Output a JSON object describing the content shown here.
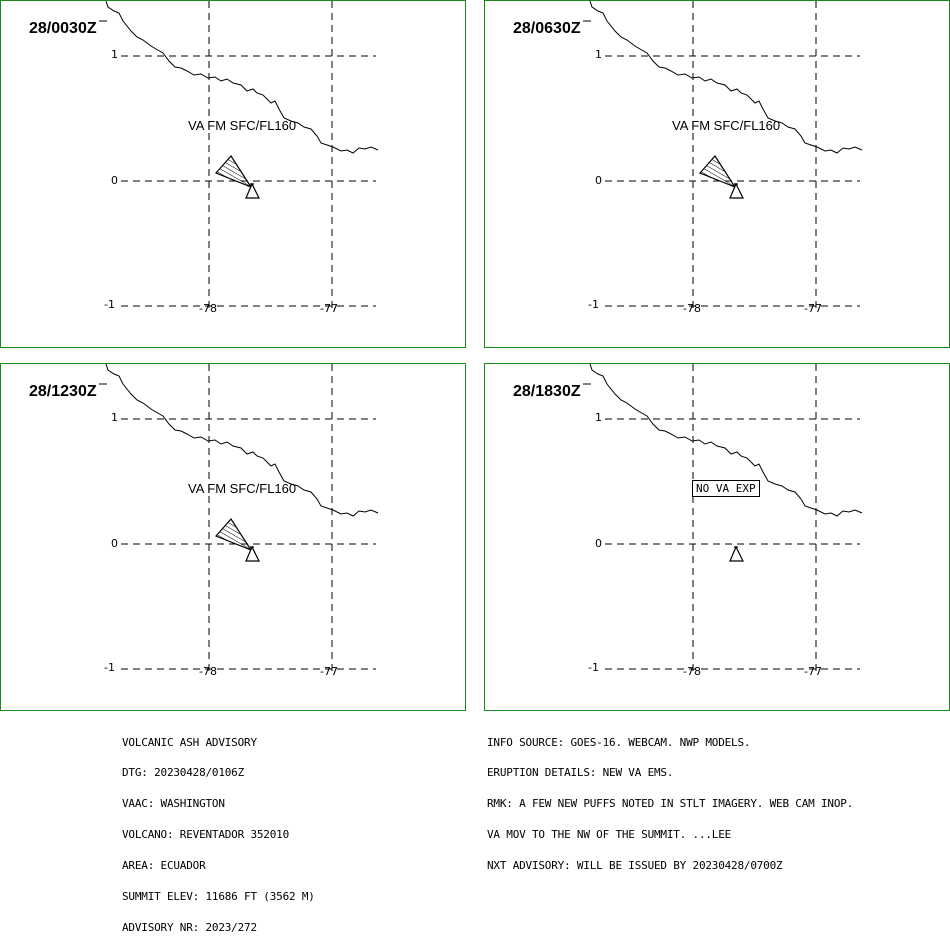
{
  "panels": [
    {
      "time": "28/0030Z",
      "va_text": "VA FM SFC/FL160",
      "show_ash_area": true,
      "box_text": ""
    },
    {
      "time": "28/0630Z",
      "va_text": "VA FM SFC/FL160",
      "show_ash_area": true,
      "box_text": ""
    },
    {
      "time": "28/1230Z",
      "va_text": "VA FM SFC/FL160",
      "show_ash_area": true,
      "box_text": ""
    },
    {
      "time": "28/1830Z",
      "va_text": "",
      "show_ash_area": false,
      "box_text": "NO VA EXP"
    }
  ],
  "axes": {
    "lat_labels": [
      "1",
      "0",
      "-1"
    ],
    "lon_labels": [
      "-78",
      "-77"
    ]
  },
  "advisory_left": [
    "VOLCANIC ASH ADVISORY",
    "DTG: 20230428/0106Z",
    "VAAC: WASHINGTON",
    "VOLCANO: REVENTADOR 352010",
    "AREA: ECUADOR",
    "SUMMIT ELEV: 11686 FT (3562 M)",
    "ADVISORY NR: 2023/272"
  ],
  "advisory_right": [
    "INFO SOURCE: GOES-16. WEBCAM. NWP MODELS.",
    "ERUPTION DETAILS: NEW VA EMS.",
    "RMK: A FEW NEW PUFFS NOTED IN STLT IMAGERY. WEB CAM INOP.",
    "VA MOV TO THE NW OF THE SUMMIT. ...LEE",
    "NXT ADVISORY: WILL BE ISSUED BY 20230428/0700Z"
  ],
  "colors": {
    "panel_border": "#1a8a1a",
    "lines": "#000000"
  }
}
